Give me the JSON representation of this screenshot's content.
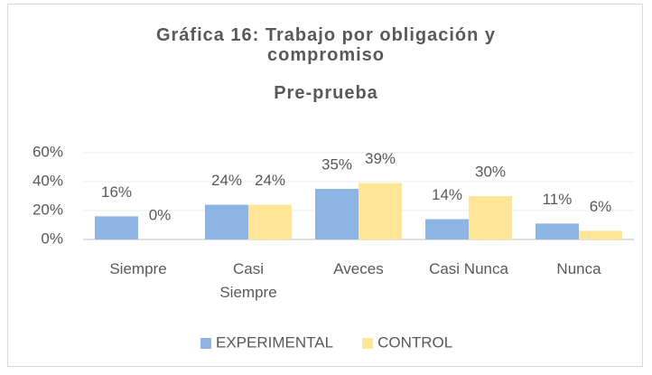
{
  "chart_data": {
    "type": "bar",
    "title": "Gráfica 16: Trabajo por obligación y compromiso",
    "subtitle": "Pre-prueba",
    "categories": [
      "Siempre",
      "Casi Siempre",
      "Aveces",
      "Casi Nunca",
      "Nunca"
    ],
    "series": [
      {
        "name": "EXPERIMENTAL",
        "color": "#8db4e2",
        "values": [
          16,
          24,
          35,
          14,
          11
        ],
        "value_labels": [
          "16%",
          "24%",
          "35%",
          "14%",
          "11%"
        ]
      },
      {
        "name": "CONTROL",
        "color": "#ffe699",
        "values": [
          0,
          24,
          39,
          30,
          6
        ],
        "value_labels": [
          "0%",
          "24%",
          "39%",
          "30%",
          "6%"
        ]
      }
    ],
    "ylim": [
      0,
      60
    ],
    "yticks": [
      {
        "value": 0,
        "label": "0%"
      },
      {
        "value": 20,
        "label": "20%"
      },
      {
        "value": 40,
        "label": "40%"
      },
      {
        "value": 60,
        "label": "60%"
      }
    ],
    "grid": true,
    "legend": "bottom"
  }
}
